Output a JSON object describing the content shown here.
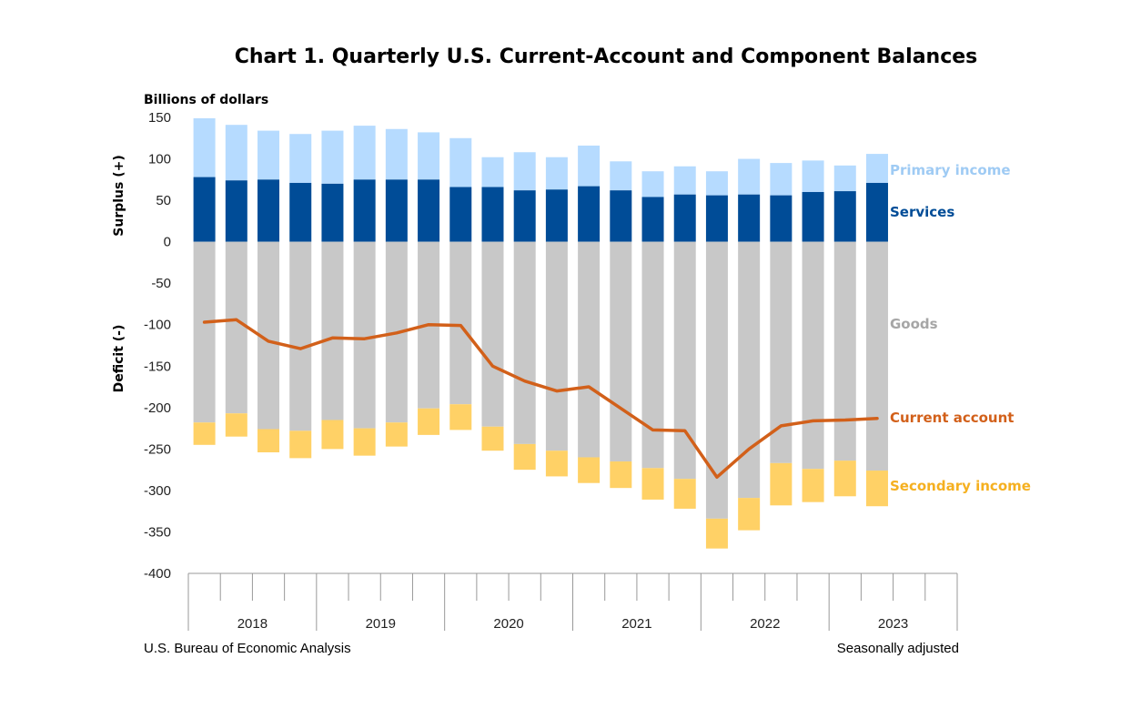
{
  "chart_data": {
    "type": "bar",
    "title": "Chart 1. Quarterly U.S. Current-Account and Component Balances",
    "units_label": "Billions of dollars",
    "surplus_label": "Surplus (+)",
    "deficit_label": "Deficit (-)",
    "ylim": [
      -400,
      150
    ],
    "yticks": [
      150,
      100,
      50,
      0,
      -50,
      -100,
      -150,
      -200,
      -250,
      -300,
      -350,
      -400
    ],
    "years": [
      "2018",
      "2019",
      "2020",
      "2021",
      "2022",
      "2023"
    ],
    "quarters": [
      "2017Q4",
      "2018Q1",
      "2018Q2",
      "2018Q3",
      "2018Q4",
      "2019Q1",
      "2019Q2",
      "2019Q3",
      "2019Q4",
      "2020Q1",
      "2020Q2",
      "2020Q3",
      "2020Q4",
      "2021Q1",
      "2021Q2",
      "2021Q3",
      "2021Q4",
      "2022Q1",
      "2022Q2",
      "2022Q3",
      "2022Q4",
      "2023Q1"
    ],
    "series": [
      {
        "name": "Services",
        "color": "#004C97",
        "values": [
          78,
          74,
          75,
          71,
          70,
          75,
          75,
          75,
          66,
          66,
          62,
          63,
          67,
          62,
          54,
          57,
          56,
          57,
          56,
          60,
          61,
          71
        ]
      },
      {
        "name": "Primary income",
        "color": "#B6DBFF",
        "values": [
          71,
          67,
          59,
          59,
          64,
          65,
          61,
          57,
          59,
          36,
          46,
          39,
          49,
          35,
          31,
          34,
          29,
          43,
          39,
          38,
          31,
          35
        ]
      },
      {
        "name": "Goods",
        "color": "#C8C8C8",
        "values": [
          -218,
          -207,
          -226,
          -228,
          -215,
          -225,
          -218,
          -201,
          -196,
          -223,
          -244,
          -252,
          -260,
          -265,
          -273,
          -286,
          -334,
          -309,
          -267,
          -274,
          -264,
          -276
        ]
      },
      {
        "name": "Secondary income",
        "color": "#FFD166",
        "values": [
          -27,
          -28,
          -28,
          -33,
          -35,
          -33,
          -29,
          -32,
          -31,
          -29,
          -31,
          -31,
          -31,
          -32,
          -38,
          -36,
          -36,
          -39,
          -51,
          -40,
          -43,
          -43
        ]
      },
      {
        "name": "Current account",
        "color": "#D2601A",
        "type": "line",
        "values": [
          -97,
          -94,
          -120,
          -129,
          -116,
          -117,
          -110,
          -100,
          -101,
          -150,
          -168,
          -180,
          -175,
          -201,
          -227,
          -228,
          -284,
          -250,
          -222,
          -216,
          -215,
          -213
        ]
      }
    ],
    "legend_placement": "right, inline labels",
    "grid": false
  },
  "footer": {
    "source": "U.S. Bureau of Economic Analysis",
    "note": "Seasonally adjusted"
  }
}
